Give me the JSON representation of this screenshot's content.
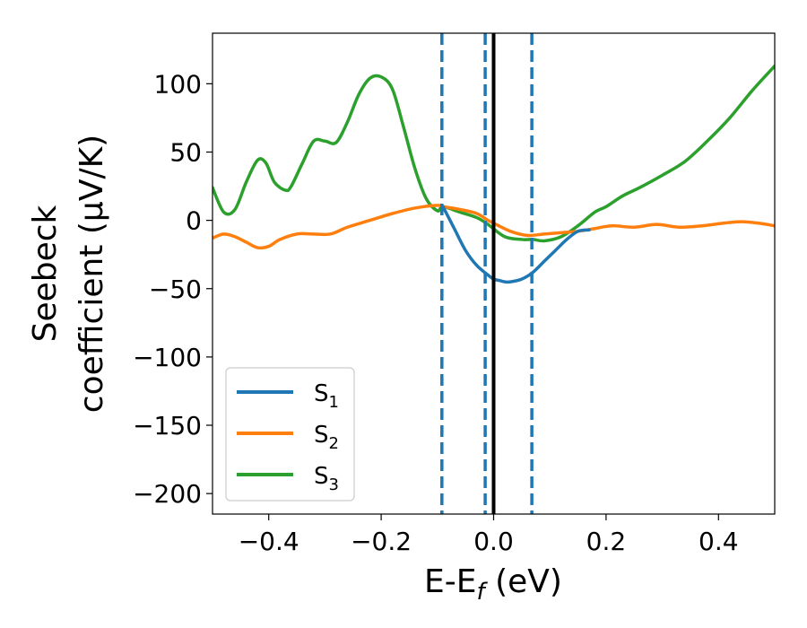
{
  "chart_data": {
    "type": "line",
    "xlabel_main": "E-E",
    "xlabel_sub": "f",
    "xlabel_unit": " (eV)",
    "ylabel_line1": "Seebeck",
    "ylabel_line2": "coefficient  (μV/K)",
    "xlim": [
      -0.5,
      0.5
    ],
    "ylim": [
      -215,
      137
    ],
    "xticks": [
      -0.4,
      -0.2,
      0.0,
      0.2,
      0.4
    ],
    "xtick_labels": [
      "−0.4",
      "−0.2",
      "0.0",
      "0.2",
      "0.4"
    ],
    "yticks": [
      100,
      50,
      0,
      -50,
      -100,
      -150,
      -200
    ],
    "ytick_labels": [
      "100",
      "50",
      "0",
      "−50",
      "−100",
      "−150",
      "−200"
    ],
    "vlines": [
      {
        "x": -0.092,
        "style": "dashed",
        "color": "#1f77b4"
      },
      {
        "x": -0.015,
        "style": "dashed",
        "color": "#1f77b4"
      },
      {
        "x": 0.0,
        "style": "solid",
        "color": "#000000"
      },
      {
        "x": 0.068,
        "style": "dashed",
        "color": "#1f77b4"
      }
    ],
    "legend_position": "lower-left",
    "series": [
      {
        "name": "S",
        "sub": "3",
        "color": "#2ca02c",
        "x": [
          -0.5,
          -0.48,
          -0.46,
          -0.44,
          -0.42,
          -0.405,
          -0.39,
          -0.37,
          -0.36,
          -0.34,
          -0.32,
          -0.3,
          -0.28,
          -0.26,
          -0.24,
          -0.22,
          -0.2,
          -0.18,
          -0.16,
          -0.14,
          -0.12,
          -0.1,
          -0.09,
          -0.06,
          -0.03,
          -0.01,
          0.02,
          0.05,
          0.07,
          0.09,
          0.12,
          0.15,
          0.18,
          0.2,
          0.23,
          0.26,
          0.3,
          0.34,
          0.38,
          0.42,
          0.46,
          0.5
        ],
        "y": [
          24,
          6,
          8,
          28,
          44,
          42,
          28,
          22,
          25,
          42,
          58,
          58,
          57,
          72,
          92,
          104,
          105,
          96,
          68,
          38,
          16,
          7,
          10,
          6,
          2,
          -3,
          -12,
          -14,
          -14,
          -15,
          -12,
          -4,
          6,
          10,
          18,
          24,
          33,
          43,
          58,
          75,
          95,
          113
        ]
      },
      {
        "name": "S",
        "sub": "2",
        "color": "#ff7f0e",
        "x": [
          -0.5,
          -0.48,
          -0.46,
          -0.44,
          -0.42,
          -0.4,
          -0.38,
          -0.35,
          -0.32,
          -0.29,
          -0.26,
          -0.22,
          -0.18,
          -0.14,
          -0.1,
          -0.09,
          -0.06,
          -0.03,
          -0.01,
          0.0,
          0.03,
          0.06,
          0.09,
          0.12,
          0.15,
          0.18,
          0.21,
          0.25,
          0.29,
          0.33,
          0.37,
          0.41,
          0.44,
          0.47,
          0.5
        ],
        "y": [
          -13,
          -10,
          -12,
          -16,
          -20,
          -19,
          -14,
          -10,
          -10,
          -10,
          -5,
          0,
          5,
          9,
          11,
          10,
          8,
          5,
          0,
          -2,
          -8,
          -11,
          -10,
          -9,
          -8,
          -6,
          -4,
          -5,
          -3,
          -5,
          -4,
          -2,
          -1,
          -2,
          -4
        ]
      },
      {
        "name": "S",
        "sub": "1",
        "color": "#1f77b4",
        "x": [
          -0.09,
          -0.07,
          -0.05,
          -0.03,
          -0.01,
          0.0,
          0.01,
          0.02,
          0.03,
          0.05,
          0.07,
          0.09,
          0.11,
          0.13,
          0.15,
          0.17
        ],
        "y": [
          10,
          -6,
          -22,
          -33,
          -40,
          -43,
          -44,
          -45,
          -45,
          -43,
          -38,
          -30,
          -22,
          -14,
          -8,
          -7
        ]
      }
    ],
    "legend_order": [
      0,
      1,
      2
    ],
    "legend_names": [
      {
        "name": "S",
        "sub": "1",
        "color": "#1f77b4"
      },
      {
        "name": "S",
        "sub": "2",
        "color": "#ff7f0e"
      },
      {
        "name": "S",
        "sub": "3",
        "color": "#2ca02c"
      }
    ]
  }
}
